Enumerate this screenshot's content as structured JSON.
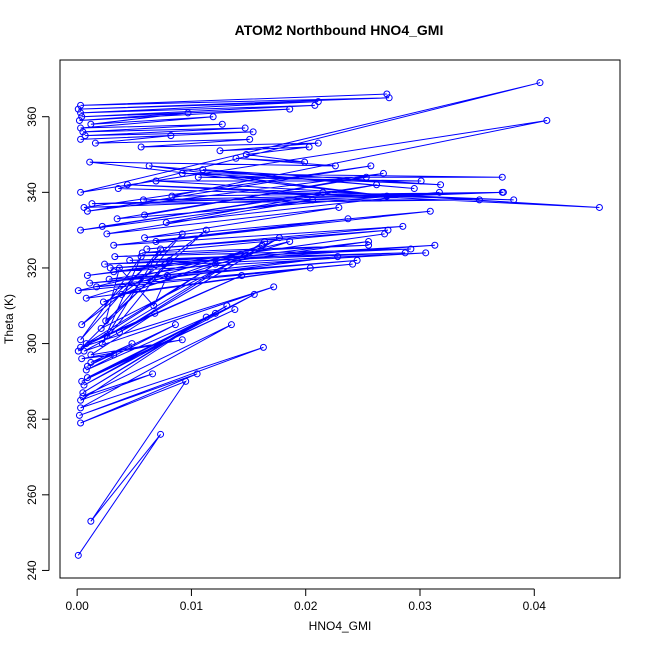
{
  "chart_data": {
    "type": "line",
    "title": "ATOM2 Northbound HNO4_GMI",
    "xlabel": "HNO4_GMI",
    "ylabel": "Theta (K)",
    "xlim": [
      -0.0015,
      0.0475
    ],
    "ylim": [
      238,
      375
    ],
    "x_ticks": [
      0.0,
      0.01,
      0.02,
      0.03,
      0.04
    ],
    "x_tick_labels": [
      "0.00",
      "0.01",
      "0.02",
      "0.03",
      "0.04"
    ],
    "y_ticks": [
      240,
      260,
      280,
      300,
      320,
      340,
      360
    ],
    "y_tick_labels": [
      "240",
      "260",
      "280",
      "300",
      "320",
      "340",
      "360"
    ],
    "grid": false,
    "legend": "none",
    "series_color": "#0000ff",
    "marker": "open-circle",
    "series": [
      {
        "x": [
          0.0001,
          0.0073,
          0.0012,
          0.0095,
          0.0003,
          0.0105,
          0.0002,
          0.0163,
          0.0003,
          0.0135,
          0.0005,
          0.0066,
          0.0003,
          0.0113,
          0.0005,
          0.0131,
          0.0006,
          0.0155,
          0.0004,
          0.0138,
          0.0009,
          0.0121,
          0.0008,
          0.0086,
          0.0009,
          0.0048,
          0.0012,
          0.0032,
          0.0004,
          0.0092,
          0.0012,
          0.0068,
          0.0006,
          0.0172,
          0.0003,
          0.0144,
          0.0008,
          0.0121,
          0.0001,
          0.0081,
          0.0022,
          0.0056,
          0.0003,
          0.0073,
          0.0026,
          0.0164,
          0.0037,
          0.0177,
          0.0021,
          0.0092,
          0.0004,
          0.0113,
          0.0025,
          0.0037,
          0.0067,
          0.0079,
          0.0023,
          0.0162,
          0.0008,
          0.0204,
          0.0039,
          0.0186,
          0.0001,
          0.0241,
          0.0017,
          0.0228,
          0.0011,
          0.0245,
          0.0028,
          0.0255,
          0.0009,
          0.0269,
          0.0032,
          0.0305,
          0.0029,
          0.0313,
          0.0024,
          0.0287,
          0.0046,
          0.0292,
          0.0033,
          0.0255,
          0.0057,
          0.0272,
          0.0061,
          0.0285,
          0.0032,
          0.0237,
          0.0069,
          0.0309,
          0.0059,
          0.0229,
          0.0026,
          0.0206,
          0.0003,
          0.0215,
          0.0022,
          0.0262,
          0.0078,
          0.0317,
          0.0035,
          0.0253,
          0.0059,
          0.0268,
          0.0009,
          0.0257,
          0.0006,
          0.0372,
          0.0013,
          0.0352,
          0.0058,
          0.0373,
          0.0083,
          0.0411,
          0.0003,
          0.0405,
          0.0036,
          0.0382,
          0.0044,
          0.0457,
          0.0069,
          0.0301,
          0.0106,
          0.0372,
          0.0092,
          0.0318,
          0.011,
          0.0295,
          0.0063,
          0.0271,
          0.0011,
          0.0226,
          0.0139,
          0.0199,
          0.0148,
          0.0203,
          0.0125,
          0.0211,
          0.0056,
          0.0151,
          0.0016,
          0.0082,
          0.0003,
          0.0154,
          0.0007,
          0.0147,
          0.0005,
          0.0127,
          0.0003,
          0.0119,
          0.0012,
          0.0097,
          0.0002,
          0.0186,
          0.0004,
          0.0208,
          0.0003,
          0.0211,
          0.0001,
          0.0273,
          0.0003,
          0.0271
        ],
        "y": [
          244,
          276,
          253,
          290,
          279,
          292,
          281,
          299,
          283,
          305,
          286,
          292,
          285,
          307,
          287,
          310,
          289,
          313,
          290,
          309,
          291,
          308,
          293,
          305,
          294,
          300,
          295,
          297,
          296,
          301,
          297,
          308,
          298,
          315,
          299,
          318,
          300,
          321,
          298,
          322,
          300,
          323,
          301,
          325,
          302,
          327,
          303,
          328,
          304,
          329,
          305,
          330,
          306,
          320,
          310,
          318,
          311,
          326,
          312,
          320,
          313,
          327,
          314,
          321,
          315,
          323,
          316,
          322,
          317,
          327,
          318,
          329,
          319,
          324,
          320,
          326,
          321,
          324,
          322,
          325,
          323,
          326,
          324,
          330,
          325,
          331,
          326,
          333,
          327,
          335,
          328,
          336,
          329,
          338,
          330,
          340,
          331,
          342,
          332,
          340,
          333,
          344,
          334,
          345,
          335,
          347,
          336,
          340,
          337,
          338,
          338,
          340,
          339,
          359,
          340,
          369,
          341,
          338,
          342,
          336,
          343,
          343,
          344,
          344,
          345,
          342,
          346,
          341,
          347,
          339,
          348,
          347,
          349,
          348,
          350,
          352,
          351,
          353,
          352,
          354,
          353,
          355,
          354,
          356,
          355,
          357,
          356,
          358,
          357,
          360,
          358,
          361,
          359,
          362,
          360,
          363,
          361,
          364,
          362,
          365,
          363,
          366
        ]
      }
    ]
  }
}
